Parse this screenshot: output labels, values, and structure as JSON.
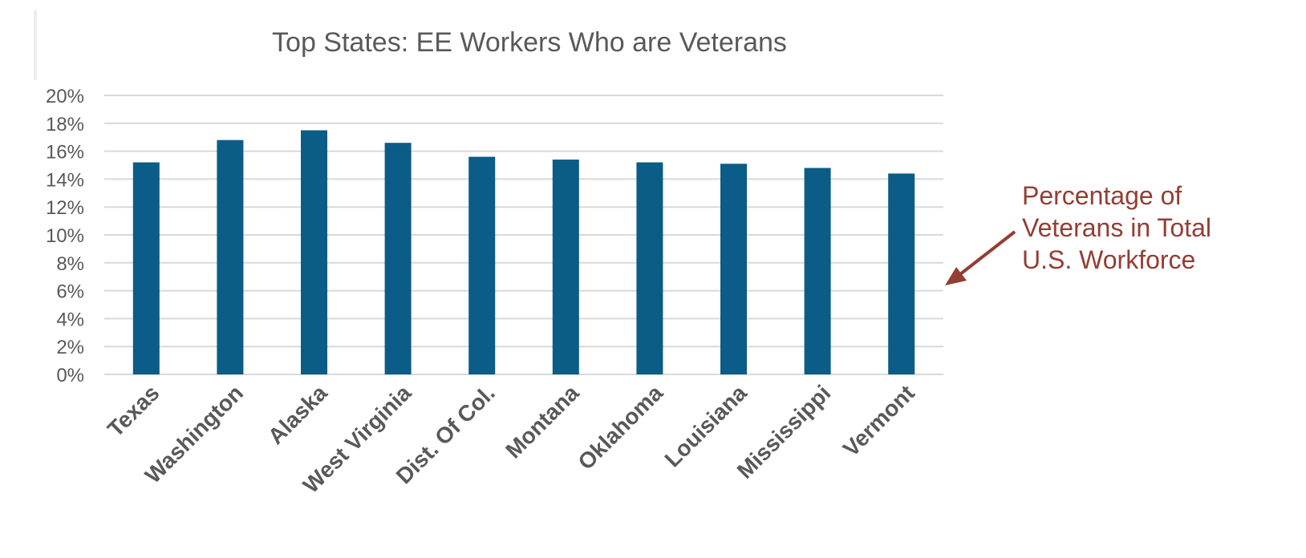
{
  "chart_data": {
    "type": "bar",
    "title": "Top States: EE Workers Who are Veterans",
    "xlabel": "",
    "ylabel": "",
    "categories": [
      "Texas",
      "Washington",
      "Alaska",
      "West Virginia",
      "Dist. Of Col.",
      "Montana",
      "Oklahoma",
      "Louisiana",
      "Mississippi",
      "Vermont"
    ],
    "series": [
      {
        "values": [
          15.2,
          16.8,
          17.5,
          16.6,
          15.6,
          15.4,
          15.2,
          15.1,
          14.8,
          14.4
        ]
      }
    ],
    "ylim": [
      0,
      20
    ],
    "yticks": [
      0,
      2,
      4,
      6,
      8,
      10,
      12,
      14,
      16,
      18,
      20
    ],
    "ytick_format": "%",
    "grid": true,
    "legend": "none",
    "bar_color": "#0b5c86",
    "reference_line": {
      "value": 6.3,
      "color": "#943d33"
    },
    "annotation": {
      "lines": [
        "Percentage of",
        "Veterans in Total",
        "U.S. Workforce"
      ],
      "color": "#943d33"
    }
  }
}
